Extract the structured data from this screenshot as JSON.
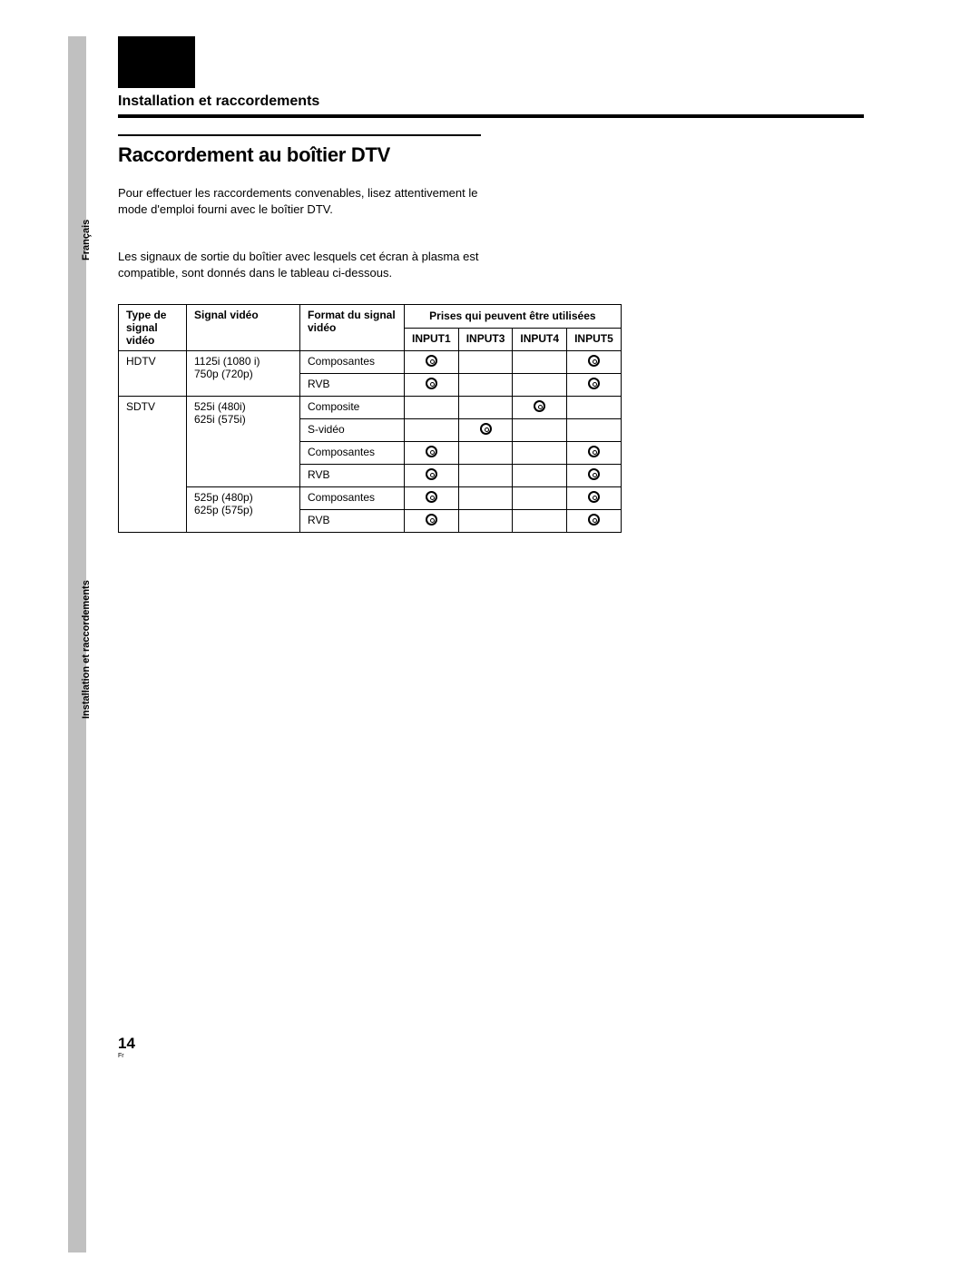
{
  "sidebar": {
    "label1": "Français",
    "label2": "Installation et raccordements"
  },
  "section_header": "Installation et raccordements",
  "title": "Raccordement au boîtier DTV",
  "para1": "Pour effectuer les raccordements convenables, lisez attentivement le mode d'emploi fourni avec le boîtier DTV.",
  "para2": "Les signaux de sortie du boîtier avec lesquels cet écran à plasma est compatible, sont donnés dans le tableau ci-dessous.",
  "table": {
    "headers": {
      "col_a": "Type de signal vidéo",
      "col_b": "Signal vidéo",
      "col_c": "Format du signal vidéo",
      "inputs_header": "Prises qui peuvent être utilisées",
      "in1": "INPUT1",
      "in3": "INPUT3",
      "in4": "INPUT4",
      "in5": "INPUT5"
    },
    "rows": [
      {
        "type": "HDTV",
        "type_rowspan": 2,
        "signal": "1125i (1080 i)\n750p (720p)",
        "signal_rowspan": 2,
        "format": "Composantes",
        "i1": true,
        "i3": false,
        "i4": false,
        "i5": true
      },
      {
        "format": "RVB",
        "i1": true,
        "i3": false,
        "i4": false,
        "i5": true
      },
      {
        "type": "SDTV",
        "type_rowspan": 6,
        "signal": "525i (480i)\n625i (575i)",
        "signal_rowspan": 4,
        "format": "Composite",
        "i1": false,
        "i3": false,
        "i4": true,
        "i5": false
      },
      {
        "format": "S-vidéo",
        "i1": false,
        "i3": true,
        "i4": false,
        "i5": false
      },
      {
        "format": "Composantes",
        "i1": true,
        "i3": false,
        "i4": false,
        "i5": true
      },
      {
        "format": "RVB",
        "i1": true,
        "i3": false,
        "i4": false,
        "i5": true
      },
      {
        "signal": "525p (480p)\n625p (575p)",
        "signal_rowspan": 2,
        "format": "Composantes",
        "i1": true,
        "i3": false,
        "i4": false,
        "i5": true
      },
      {
        "format": "RVB",
        "i1": true,
        "i3": false,
        "i4": false,
        "i5": true
      }
    ]
  },
  "page_number": "14",
  "page_lang": "Fr"
}
